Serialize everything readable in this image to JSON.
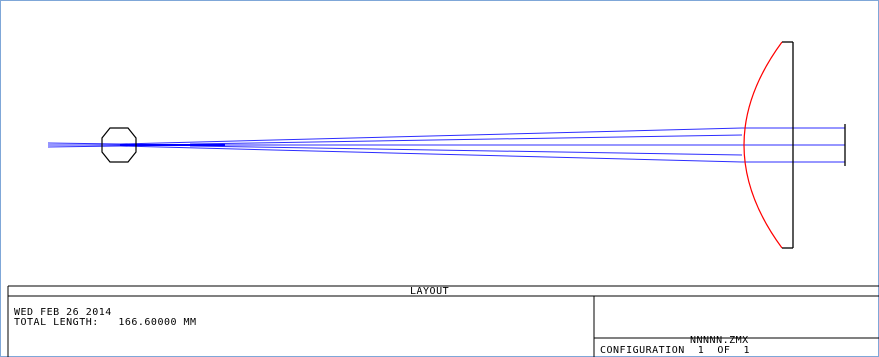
{
  "layout_plot": {
    "title": "LAYOUT",
    "date": "WED FEB 26 2014",
    "total_length": "TOTAL LENGTH:   166.60000 MM",
    "file_name": "NNNNN.ZMX",
    "configuration": "CONFIGURATION  1  OF  1"
  },
  "colors": {
    "ray": "#2d2dff",
    "lens_curve": "#ff0000",
    "lens_edge": "#000000",
    "frame": "#7fa7d8"
  }
}
